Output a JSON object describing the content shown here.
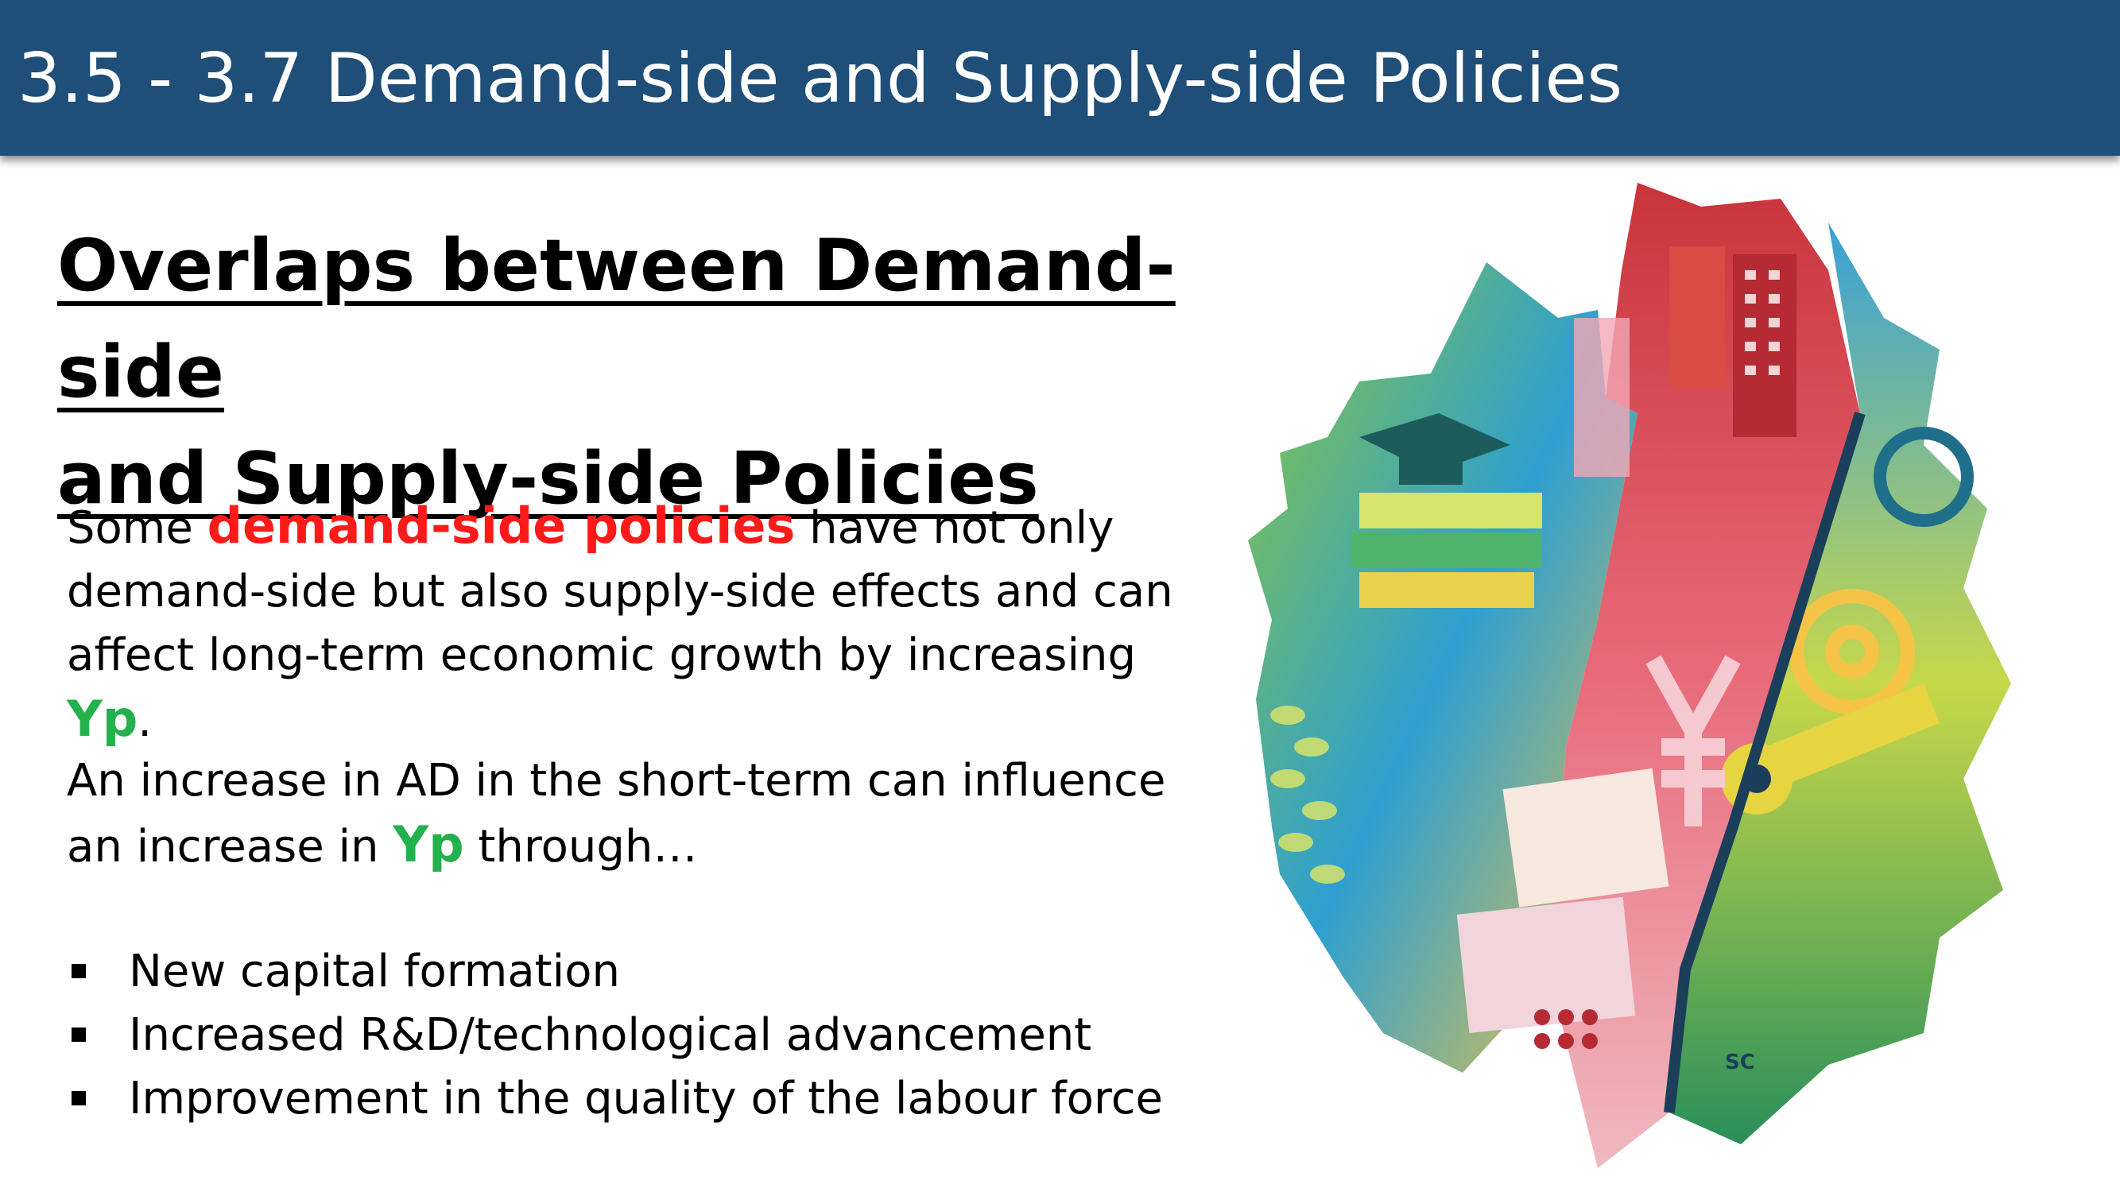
{
  "header": {
    "title": "3.5 - 3.7 Demand-side and Supply-side Policies"
  },
  "heading": {
    "line1": "Overlaps between Demand-side",
    "line2": "and Supply-side Policies"
  },
  "paragraph1": {
    "t1": "Some ",
    "highlight": "demand-side policies",
    "t2": " have not only demand-side but also supply-side effects and can affect long-term economic growth by increasing ",
    "yp": "Yp",
    "t3": "."
  },
  "paragraph2": {
    "t1": "An increase in AD in the short-term can influence an increase in ",
    "yp": "Yp",
    "t2": " through…"
  },
  "bullets": [
    "New capital formation",
    "Increased R&D/technological advancement",
    "Improvement in the quality of the labour force"
  ],
  "illustration": {
    "signature": "SC"
  },
  "colors": {
    "title_bar": "#1f4e79",
    "highlight_red": "#ff1a1a",
    "highlight_green": "#22b14c"
  }
}
